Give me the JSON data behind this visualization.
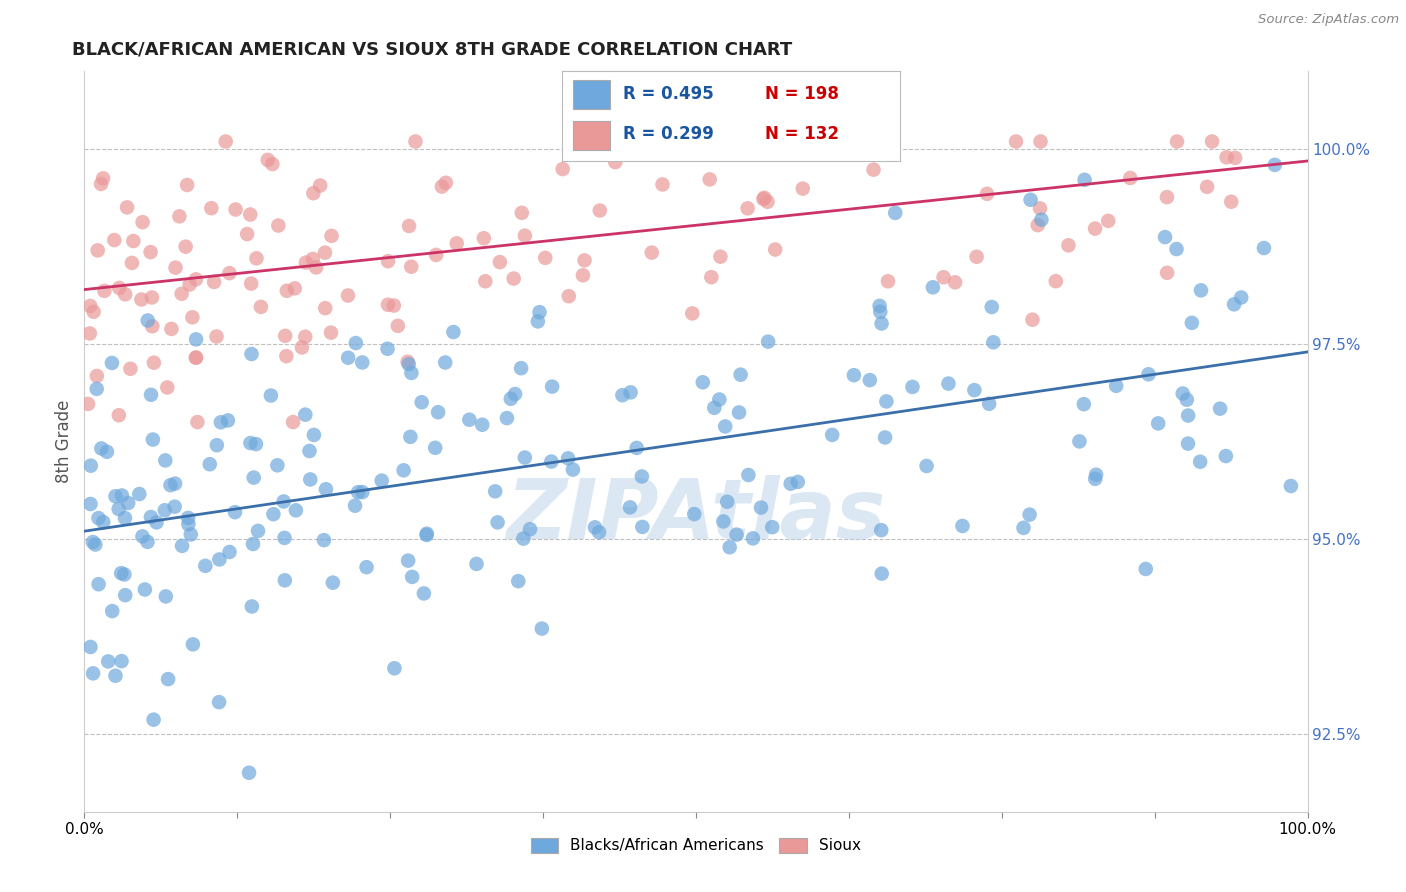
{
  "title": "BLACK/AFRICAN AMERICAN VS SIOUX 8TH GRADE CORRELATION CHART",
  "source_text": "Source: ZipAtlas.com",
  "ylabel": "8th Grade",
  "xlim": [
    0.0,
    100.0
  ],
  "ylim": [
    91.5,
    101.0
  ],
  "yticks": [
    92.5,
    95.0,
    97.5,
    100.0
  ],
  "xticks": [
    0.0,
    12.5,
    25.0,
    37.5,
    50.0,
    62.5,
    75.0,
    87.5,
    100.0
  ],
  "xtick_labels": [
    "0.0%",
    "",
    "",
    "",
    "",
    "",
    "",
    "",
    "100.0%"
  ],
  "ytick_labels": [
    "92.5%",
    "95.0%",
    "97.5%",
    "100.0%"
  ],
  "blue_R": 0.495,
  "blue_N": 198,
  "pink_R": 0.299,
  "pink_N": 132,
  "blue_color": "#6fa8dc",
  "pink_color": "#ea9999",
  "blue_line_color": "#3a6faa",
  "pink_line_color": "#cc3366",
  "tick_color": "#4472c4",
  "legend_R_color": "#1a56a0",
  "legend_N_color": "#cc0000",
  "watermark_color": "#b8d0e8",
  "figsize": [
    14.06,
    8.92
  ],
  "dpi": 100,
  "blue_line_start_y": 95.1,
  "blue_line_end_y": 97.4,
  "pink_line_start_y": 98.2,
  "pink_line_end_y": 99.85,
  "seed": 42
}
